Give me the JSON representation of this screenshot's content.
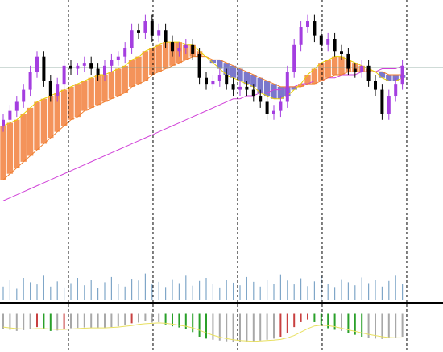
{
  "chart_data": [
    {
      "type": "candlestick",
      "open": [
        158,
        160,
        163,
        166,
        170,
        176,
        181,
        173,
        168,
        172,
        178,
        177,
        178,
        179,
        177,
        175,
        178,
        180,
        181,
        184,
        190,
        189,
        193,
        188,
        190,
        186,
        183,
        184,
        185,
        182,
        174,
        172,
        173,
        175,
        172,
        170,
        171,
        170,
        168,
        166,
        162,
        163,
        166,
        176,
        185,
        191,
        193,
        188,
        185,
        187,
        183,
        182,
        177,
        176,
        178,
        173,
        170,
        162,
        168,
        172
      ],
      "high": [
        162,
        165,
        168,
        172,
        178,
        183,
        183,
        175,
        174,
        180,
        180,
        179,
        181,
        181,
        179,
        180,
        182,
        183,
        186,
        192,
        192,
        195,
        195,
        192,
        192,
        188,
        186,
        187,
        187,
        184,
        176,
        175,
        177,
        177,
        174,
        173,
        173,
        172,
        170,
        168,
        165,
        168,
        178,
        187,
        193,
        195,
        195,
        190,
        189,
        189,
        185,
        184,
        179,
        180,
        180,
        175,
        172,
        170,
        174,
        180
      ],
      "low": [
        156,
        158,
        161,
        164,
        168,
        174,
        171,
        166,
        166,
        170,
        175,
        175,
        176,
        175,
        173,
        173,
        176,
        178,
        179,
        182,
        187,
        187,
        186,
        186,
        184,
        181,
        181,
        182,
        180,
        172,
        170,
        170,
        171,
        170,
        168,
        168,
        168,
        166,
        164,
        160,
        160,
        161,
        164,
        174,
        183,
        189,
        186,
        183,
        183,
        181,
        180,
        175,
        174,
        174,
        171,
        168,
        160,
        160,
        166,
        170
      ],
      "close": [
        160,
        163,
        166,
        170,
        176,
        181,
        173,
        168,
        172,
        178,
        177,
        178,
        179,
        177,
        175,
        178,
        180,
        181,
        184,
        190,
        189,
        193,
        188,
        190,
        186,
        183,
        184,
        185,
        182,
        174,
        172,
        173,
        175,
        172,
        170,
        171,
        170,
        168,
        166,
        162,
        163,
        166,
        176,
        185,
        191,
        193,
        188,
        185,
        187,
        183,
        182,
        177,
        176,
        178,
        173,
        170,
        162,
        168,
        172,
        178
      ],
      "up_color": "#a43ee0",
      "down_color": "#000000",
      "ma_fast": [
        158,
        159,
        160,
        162,
        164,
        166,
        167,
        168,
        169,
        170,
        171,
        172,
        173,
        174,
        175,
        175,
        176,
        177,
        178,
        180,
        181,
        183,
        184,
        185,
        186,
        186,
        186,
        185,
        185,
        183,
        181,
        179,
        177,
        175,
        174,
        173,
        172,
        171,
        169,
        168,
        167,
        167,
        168,
        170,
        172,
        175,
        177,
        179,
        180,
        181,
        181,
        180,
        179,
        178,
        177,
        176,
        174,
        173,
        173,
        174
      ],
      "ma_mid": [
        140,
        142,
        144,
        146,
        148,
        150,
        152,
        154,
        156,
        158,
        160,
        161,
        163,
        164,
        165,
        166,
        167,
        168,
        169,
        171,
        172,
        173,
        175,
        176,
        177,
        178,
        179,
        180,
        181,
        181,
        181,
        180,
        180,
        179,
        178,
        177,
        176,
        175,
        174,
        173,
        172,
        171,
        171,
        171,
        171,
        172,
        172,
        173,
        174,
        175,
        175,
        176,
        176,
        176,
        176,
        176,
        176,
        175,
        175,
        175
      ],
      "ma_slow": [
        133,
        134,
        135,
        136,
        137,
        138,
        139,
        140,
        141,
        142,
        143,
        144,
        145,
        146,
        147,
        148,
        149,
        150,
        151,
        152,
        153,
        154,
        155,
        156,
        157,
        158,
        159,
        160,
        161,
        162,
        163,
        164,
        165,
        166,
        167,
        167,
        168,
        168,
        169,
        169,
        170,
        170,
        171,
        171,
        172,
        172,
        173,
        173,
        174,
        174,
        175,
        175,
        175,
        176,
        176,
        176,
        177,
        177,
        177,
        178
      ],
      "fast_color": "#e8d000",
      "mid_color": "#f08030",
      "slow_color": "#d040d8",
      "band_up_color": "#f4935a",
      "band_down_color": "#7b78cc",
      "price_line": 177.4,
      "price_line_color": "#7f9f94",
      "ylim": [
        100,
        200
      ],
      "grid_x": [
        9.64,
        22.14,
        34.64,
        47.14,
        59.64
      ]
    },
    {
      "type": "bar",
      "values": [
        30,
        45,
        25,
        50,
        40,
        35,
        55,
        30,
        42,
        28,
        38,
        50,
        33,
        45,
        27,
        40,
        52,
        36,
        30,
        48,
        44,
        60,
        35,
        41,
        29,
        47,
        38,
        55,
        32,
        43,
        50,
        36,
        28,
        45,
        39,
        33,
        52,
        41,
        30,
        46,
        37,
        58,
        44,
        35,
        49,
        31,
        42,
        54,
        36,
        29,
        47,
        40,
        33,
        51,
        38,
        45,
        30,
        43,
        55,
        37
      ],
      "color": "#7fa6c8",
      "ylim": [
        0,
        100
      ]
    },
    {
      "type": "histogram-line",
      "values": [
        -4,
        -4.2,
        -4.5,
        -4.3,
        -4,
        -3.5,
        -4,
        -4.5,
        -4.4,
        -4,
        -3.8,
        -3.7,
        -3.6,
        -3.7,
        -3.8,
        -3.7,
        -3.5,
        -3.3,
        -3,
        -2.5,
        -2.3,
        -2,
        -2.3,
        -2.2,
        -2.8,
        -3.3,
        -3.6,
        -4,
        -4.8,
        -6,
        -6.5,
        -6.8,
        -7,
        -7.2,
        -7.3,
        -7.4,
        -7.3,
        -7.2,
        -7,
        -6.8,
        -6.5,
        -6,
        -5,
        -3.5,
        -2.2,
        -1.5,
        -2.2,
        -3,
        -3.8,
        -4.2,
        -4.5,
        -5,
        -5.5,
        -6,
        -6.3,
        -6.5,
        -6.6,
        -6.4,
        -6.2,
        -6
      ],
      "signal": [
        -3.5,
        -3.7,
        -3.9,
        -4,
        -4,
        -3.9,
        -3.9,
        -4,
        -4.1,
        -4.1,
        -4,
        -3.9,
        -3.8,
        -3.7,
        -3.7,
        -3.7,
        -3.6,
        -3.5,
        -3.3,
        -3.1,
        -2.8,
        -2.6,
        -2.5,
        -2.4,
        -2.5,
        -2.7,
        -3,
        -3.3,
        -3.7,
        -4.3,
        -5,
        -5.6,
        -6.1,
        -6.5,
        -6.8,
        -7,
        -7.1,
        -7.2,
        -7.1,
        -7,
        -6.9,
        -6.7,
        -6.3,
        -5.7,
        -4.8,
        -3.9,
        -3.2,
        -3,
        -3.1,
        -3.4,
        -3.8,
        -4.2,
        -4.6,
        -5,
        -5.4,
        -5.7,
        -6,
        -6.2,
        -6.3,
        -6.3
      ],
      "flat_color": "#a8a8a8",
      "rise_color": "#c84040",
      "fall_color": "#2aa02a",
      "signal_color": "#e8e060",
      "ylim": [
        -10,
        2
      ]
    }
  ]
}
